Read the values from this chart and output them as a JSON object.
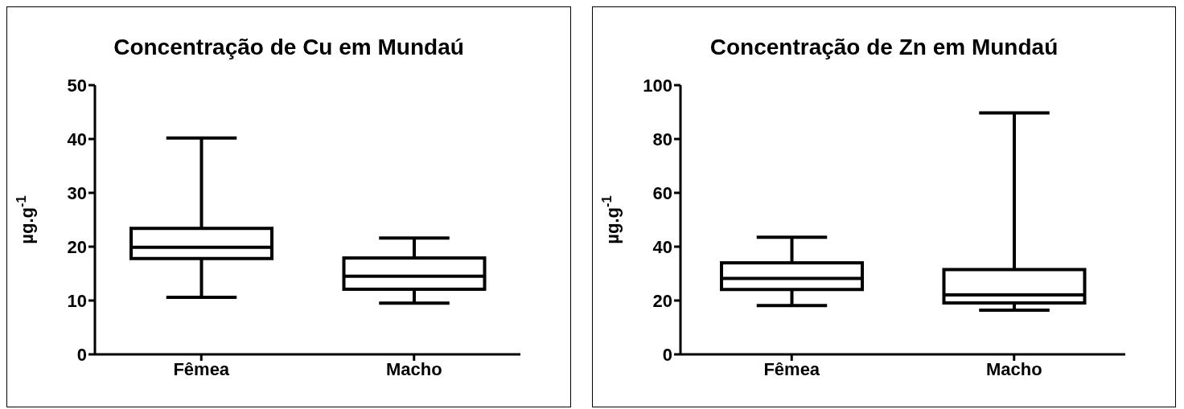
{
  "chart_data": [
    {
      "type": "box",
      "title": "Concentração de Cu em Mundaú",
      "ylabel": "µg.g$^{-1}$",
      "categories": [
        "Fêmea",
        "Macho"
      ],
      "boxes": [
        {
          "low": 10.6,
          "q1": 17.8,
          "median": 19.9,
          "q3": 23.4,
          "high": 40.2
        },
        {
          "low": 9.5,
          "q1": 12.1,
          "median": 14.5,
          "q3": 17.9,
          "high": 21.6
        }
      ],
      "ylim": [
        0,
        50
      ],
      "yticks": [
        0,
        10,
        20,
        30,
        40,
        50
      ]
    },
    {
      "type": "box",
      "title": "Concentração de Zn em Mundaú",
      "ylabel": "µg.g$^{-1}$",
      "categories": [
        "Fêmea",
        "Macho"
      ],
      "boxes": [
        {
          "low": 18.1,
          "q1": 24.1,
          "median": 28.2,
          "q3": 34,
          "high": 43.5
        },
        {
          "low": 16.4,
          "q1": 19.1,
          "median": 22.1,
          "q3": 31.5,
          "high": 89.7
        }
      ],
      "ylim": [
        0,
        100
      ],
      "yticks": [
        0,
        20,
        40,
        60,
        80,
        100
      ]
    }
  ]
}
